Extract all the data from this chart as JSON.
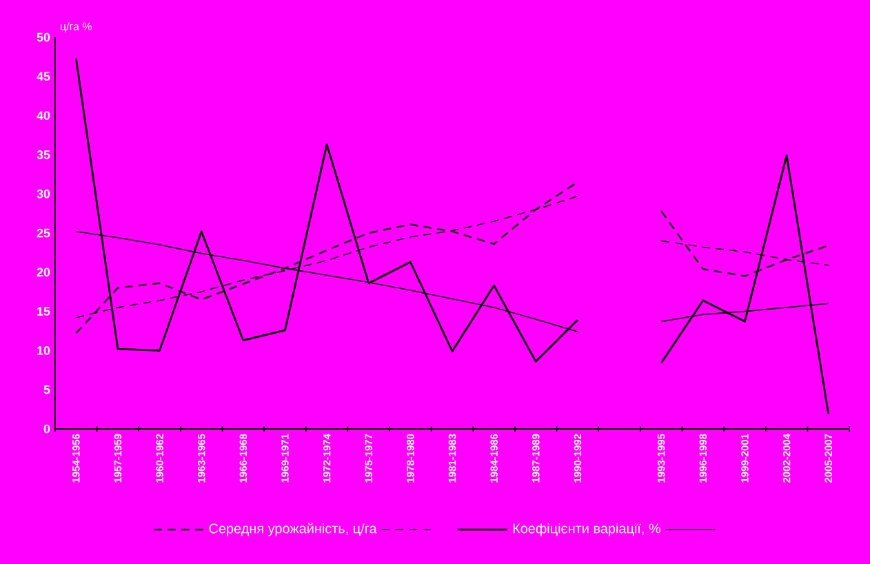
{
  "chart_data": {
    "type": "line",
    "ylabel": "ц/га  %",
    "categories": [
      "1954-1956",
      "1957-1959",
      "1960-1962",
      "1963-1965",
      "1966-1968",
      "1969-1971",
      "1972-1974",
      "1975-1977",
      "1978-1980",
      "1981-1983",
      "1984-1986",
      "1987-1989",
      "1990-1992",
      null,
      "1993-1995",
      "1996-1998",
      "1999-2001",
      "2002-2004",
      "2005-2007"
    ],
    "series": [
      {
        "name": "Середня урожайність, ц/га",
        "color": "#333333",
        "line_style": "dashed",
        "values": [
          12.2,
          18,
          18.6,
          16.5,
          18.5,
          20.5,
          22.8,
          25,
          26.1,
          25.2,
          23.6,
          28,
          31.5,
          null,
          27.8,
          20.4,
          19.5,
          21.6,
          23.4
        ]
      },
      {
        "color": "#000000",
        "line_style": "dashed",
        "values": [
          14.2,
          15.5,
          16.4,
          17.5,
          19,
          20.2,
          21.5,
          23.2,
          24.5,
          25.3,
          26.5,
          28,
          29.7,
          null,
          24,
          23.2,
          22.6,
          21.6,
          20.9
        ]
      },
      {
        "name": "Коефіцієнти варіації, %",
        "color": "#000000",
        "line_style": "solid",
        "values": [
          47.3,
          10.2,
          10,
          25.2,
          11.3,
          12.6,
          36.3,
          18.6,
          21.3,
          9.9,
          18.3,
          8.6,
          13.9,
          null,
          8.4,
          16.4,
          13.7,
          34.9,
          1.9
        ]
      },
      {
        "color": "#000000",
        "line_style": "solid",
        "values": [
          25.2,
          24.4,
          23.5,
          22.4,
          21.5,
          20.5,
          19.6,
          18.7,
          17.7,
          16.6,
          15.5,
          14,
          12.4,
          null,
          13.7,
          14.6,
          15,
          15.5,
          16
        ]
      }
    ],
    "ylim": [
      0,
      50
    ],
    "yticks": [
      0,
      5,
      10,
      15,
      20,
      25,
      30,
      35,
      40,
      45,
      50
    ],
    "grid": false,
    "legend": "bottom",
    "marker": "none"
  }
}
